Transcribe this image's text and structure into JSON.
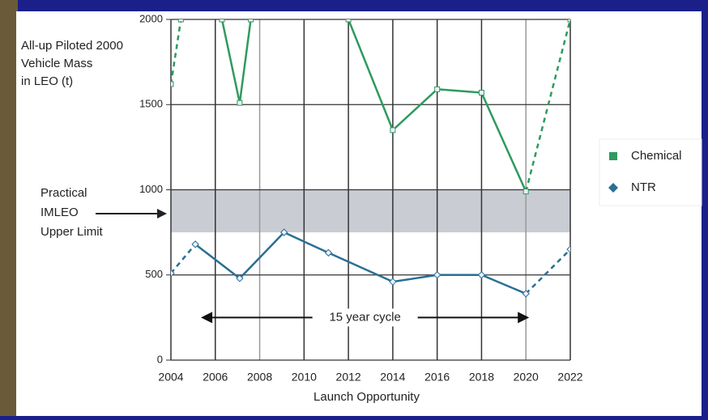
{
  "chart_data": {
    "type": "line",
    "y_label": [
      "All-up Piloted 2000",
      "Vehicle Mass",
      "in LEO (t)"
    ],
    "x_label": "Launch Opportunity",
    "xlim": [
      2004,
      2022
    ],
    "xticks": [
      2004,
      2006,
      2008,
      2010,
      2012,
      2014,
      2016,
      2018,
      2020,
      2022
    ],
    "ylim": [
      0,
      2000
    ],
    "yticks": [
      0,
      500,
      1000,
      1500,
      2000
    ],
    "grid": true,
    "dashed_ends": true,
    "legend": "right",
    "series": [
      {
        "name": "Chemical",
        "color": "#2e9a5e",
        "marker": "square",
        "x": [
          2004,
          2004.45,
          2005.5,
          2006.3,
          2007.1,
          2007.6,
          2010,
          2012,
          2014,
          2016,
          2018,
          2020,
          2022
        ],
        "values": [
          1620,
          2000,
          null,
          2000,
          1510,
          2000,
          null,
          2000,
          1350,
          1590,
          1570,
          990,
          2000
        ]
      },
      {
        "name": "NTR",
        "color": "#2a6f94",
        "marker": "diamond",
        "x": [
          2004,
          2005.1,
          2007.1,
          2009.1,
          2011.1,
          2014,
          2016,
          2018,
          2020,
          2022
        ],
        "values": [
          510,
          680,
          480,
          750,
          630,
          460,
          500,
          500,
          390,
          650
        ]
      }
    ],
    "band": {
      "from": 750,
      "to": 1000,
      "color": "#c9ccd3",
      "label": [
        "Practical",
        "IMLEO",
        "Upper Limit"
      ]
    },
    "cycle": {
      "label": "15 year cycle",
      "from": 2005.5,
      "to": 2020,
      "y": 250
    }
  }
}
